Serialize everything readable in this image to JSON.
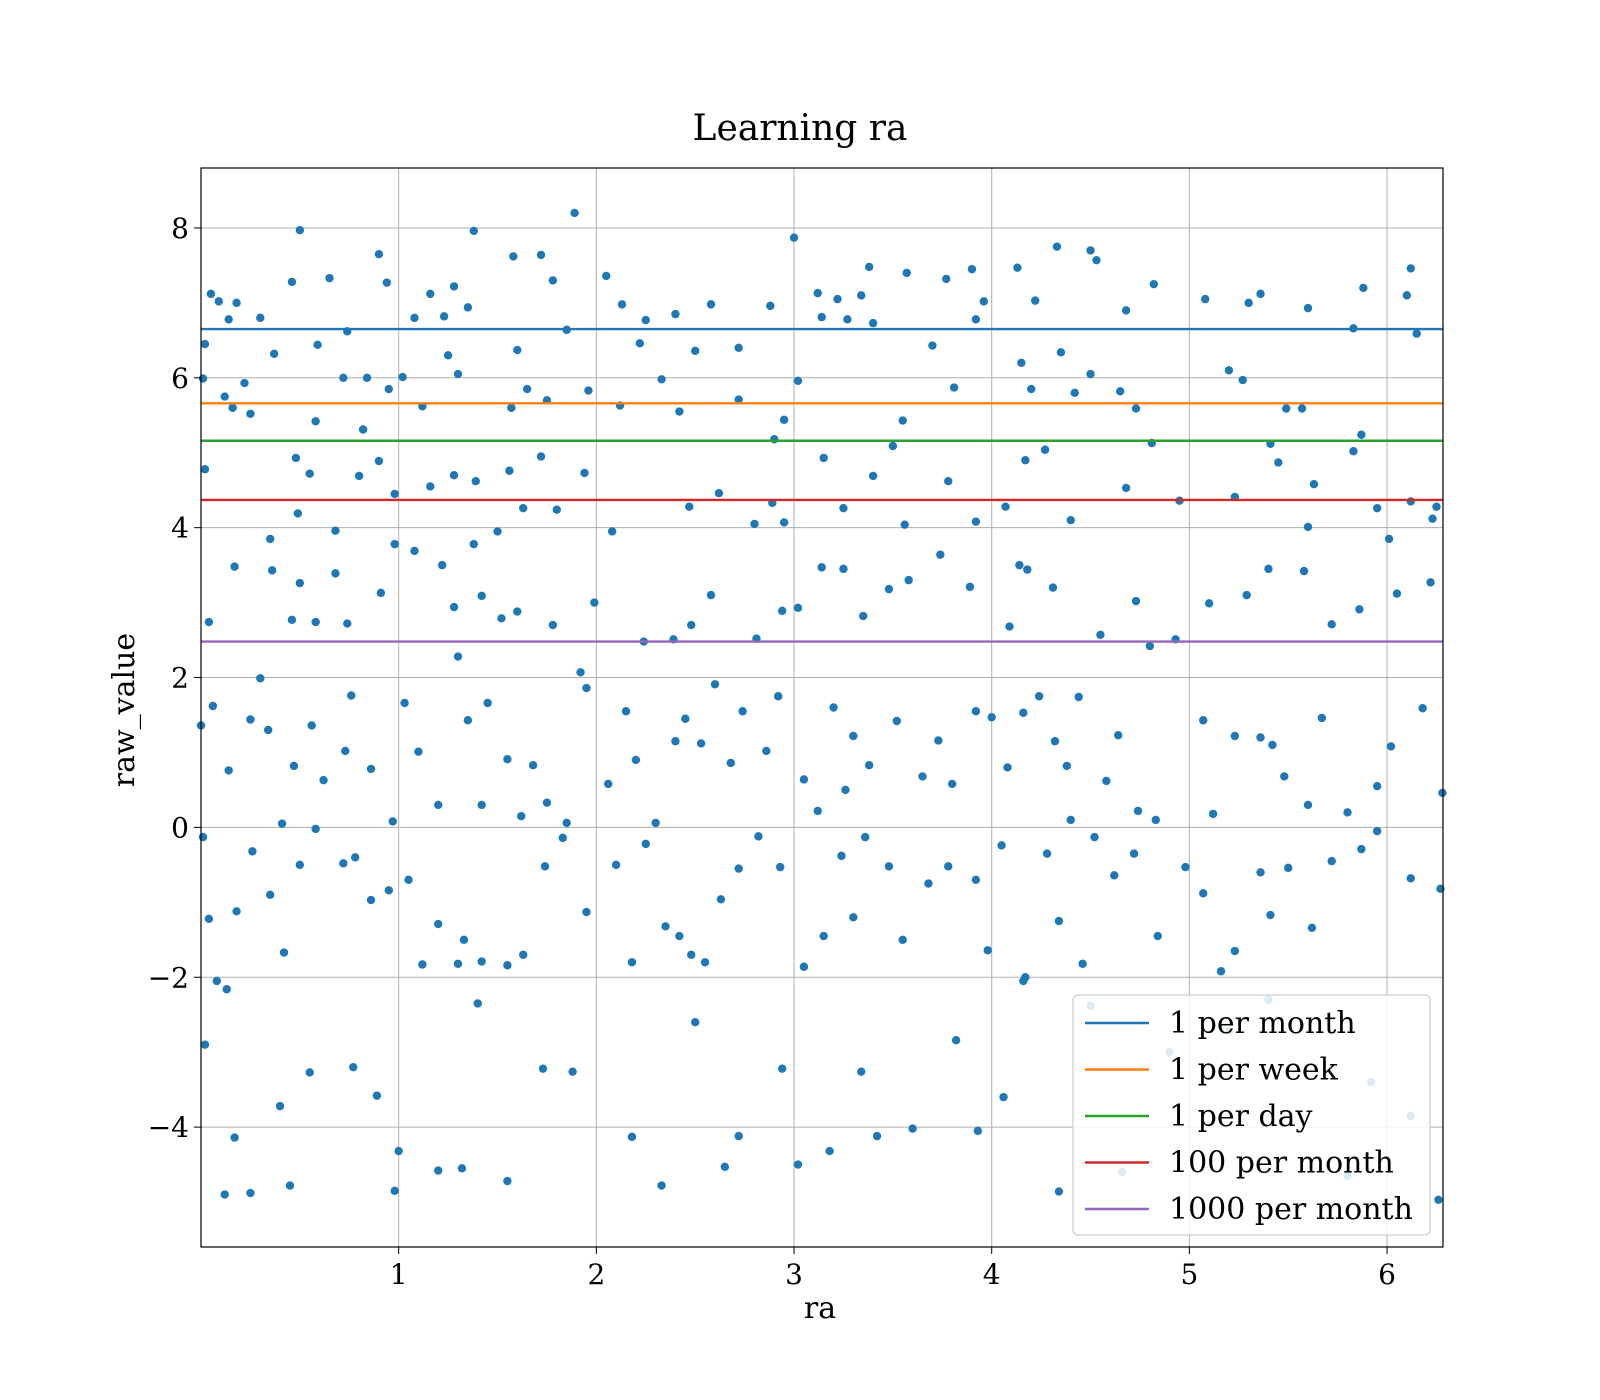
{
  "chart_data": {
    "type": "scatter",
    "title": "Learning ra",
    "xlabel": "ra",
    "ylabel": "raw_value",
    "xlim": [
      0,
      6.283
    ],
    "ylim": [
      -5.6,
      8.8
    ],
    "xticks": [
      1,
      2,
      3,
      4,
      5,
      6
    ],
    "yticks": [
      -4,
      -2,
      0,
      2,
      4,
      6,
      8
    ],
    "grid": true,
    "legend_position": "lower-right",
    "point_color": "#1f77b4",
    "points": [
      [
        0.02,
        6.45
      ],
      [
        0.05,
        7.12
      ],
      [
        0.09,
        7.02
      ],
      [
        0.14,
        6.78
      ],
      [
        0.18,
        7.0
      ],
      [
        0.22,
        5.93
      ],
      [
        0.3,
        6.8
      ],
      [
        0.37,
        6.32
      ],
      [
        0.46,
        7.28
      ],
      [
        0.5,
        7.97
      ],
      [
        0.59,
        6.44
      ],
      [
        0.65,
        7.33
      ],
      [
        0.74,
        6.62
      ],
      [
        0.84,
        6.0
      ],
      [
        0.9,
        7.65
      ],
      [
        0.94,
        7.27
      ],
      [
        1.08,
        6.8
      ],
      [
        1.16,
        7.12
      ],
      [
        1.23,
        6.82
      ],
      [
        1.28,
        7.22
      ],
      [
        1.35,
        6.94
      ],
      [
        1.38,
        7.96
      ],
      [
        1.58,
        7.62
      ],
      [
        1.72,
        7.64
      ],
      [
        1.78,
        7.3
      ],
      [
        1.89,
        8.2
      ],
      [
        2.05,
        7.36
      ],
      [
        2.13,
        6.98
      ],
      [
        2.25,
        6.77
      ],
      [
        2.4,
        6.85
      ],
      [
        2.58,
        6.98
      ],
      [
        2.72,
        6.4
      ],
      [
        2.88,
        6.96
      ],
      [
        3.0,
        7.87
      ],
      [
        3.12,
        7.13
      ],
      [
        3.22,
        7.05
      ],
      [
        3.34,
        7.1
      ],
      [
        3.38,
        7.48
      ],
      [
        3.57,
        7.4
      ],
      [
        3.77,
        7.32
      ],
      [
        3.9,
        7.45
      ],
      [
        3.96,
        7.02
      ],
      [
        4.13,
        7.47
      ],
      [
        4.22,
        7.03
      ],
      [
        4.33,
        7.75
      ],
      [
        4.5,
        7.7
      ],
      [
        4.53,
        7.57
      ],
      [
        4.68,
        6.9
      ],
      [
        4.82,
        7.25
      ],
      [
        5.08,
        7.05
      ],
      [
        5.3,
        7.0
      ],
      [
        5.36,
        7.12
      ],
      [
        5.6,
        6.93
      ],
      [
        5.88,
        7.2
      ],
      [
        6.12,
        7.46
      ],
      [
        6.1,
        7.1
      ],
      [
        0.01,
        5.99
      ],
      [
        0.12,
        5.75
      ],
      [
        0.16,
        5.6
      ],
      [
        0.25,
        5.52
      ],
      [
        0.48,
        4.93
      ],
      [
        0.58,
        5.42
      ],
      [
        0.72,
        6.0
      ],
      [
        0.82,
        5.31
      ],
      [
        0.95,
        5.85
      ],
      [
        1.02,
        6.01
      ],
      [
        1.12,
        5.62
      ],
      [
        1.25,
        6.3
      ],
      [
        1.3,
        6.05
      ],
      [
        1.57,
        5.6
      ],
      [
        1.6,
        6.37
      ],
      [
        1.65,
        5.85
      ],
      [
        1.75,
        5.7
      ],
      [
        1.85,
        6.64
      ],
      [
        1.96,
        5.83
      ],
      [
        2.12,
        5.63
      ],
      [
        2.22,
        6.46
      ],
      [
        2.33,
        5.98
      ],
      [
        2.42,
        5.55
      ],
      [
        2.5,
        6.36
      ],
      [
        2.72,
        5.71
      ],
      [
        2.9,
        5.18
      ],
      [
        2.95,
        5.44
      ],
      [
        3.02,
        5.96
      ],
      [
        3.14,
        6.81
      ],
      [
        3.27,
        6.78
      ],
      [
        3.4,
        6.73
      ],
      [
        3.55,
        5.43
      ],
      [
        3.7,
        6.43
      ],
      [
        3.81,
        5.87
      ],
      [
        3.92,
        6.78
      ],
      [
        4.15,
        6.2
      ],
      [
        4.2,
        5.85
      ],
      [
        4.35,
        6.34
      ],
      [
        4.42,
        5.8
      ],
      [
        4.5,
        6.05
      ],
      [
        4.65,
        5.82
      ],
      [
        4.73,
        5.59
      ],
      [
        4.81,
        5.13
      ],
      [
        5.2,
        6.1
      ],
      [
        5.27,
        5.97
      ],
      [
        5.49,
        5.59
      ],
      [
        5.57,
        5.59
      ],
      [
        5.83,
        6.66
      ],
      [
        6.15,
        6.59
      ],
      [
        0.02,
        4.78
      ],
      [
        0.35,
        3.85
      ],
      [
        0.49,
        4.19
      ],
      [
        0.55,
        4.72
      ],
      [
        0.68,
        3.96
      ],
      [
        0.8,
        4.69
      ],
      [
        0.9,
        4.89
      ],
      [
        0.98,
        4.45
      ],
      [
        1.16,
        4.55
      ],
      [
        1.28,
        4.7
      ],
      [
        1.39,
        4.62
      ],
      [
        1.5,
        3.95
      ],
      [
        1.56,
        4.76
      ],
      [
        1.63,
        4.26
      ],
      [
        1.72,
        4.95
      ],
      [
        1.8,
        4.24
      ],
      [
        1.94,
        4.73
      ],
      [
        2.08,
        3.95
      ],
      [
        2.47,
        4.28
      ],
      [
        2.62,
        4.46
      ],
      [
        2.8,
        4.05
      ],
      [
        2.89,
        4.33
      ],
      [
        2.95,
        4.07
      ],
      [
        3.15,
        4.93
      ],
      [
        3.25,
        4.26
      ],
      [
        3.4,
        4.69
      ],
      [
        3.5,
        5.09
      ],
      [
        3.56,
        4.04
      ],
      [
        3.78,
        4.62
      ],
      [
        3.92,
        4.08
      ],
      [
        4.07,
        4.28
      ],
      [
        4.17,
        4.9
      ],
      [
        4.27,
        5.04
      ],
      [
        4.4,
        4.1
      ],
      [
        4.68,
        4.53
      ],
      [
        4.95,
        4.36
      ],
      [
        5.23,
        4.41
      ],
      [
        5.41,
        5.12
      ],
      [
        5.45,
        4.87
      ],
      [
        5.6,
        4.01
      ],
      [
        5.63,
        4.58
      ],
      [
        5.83,
        5.02
      ],
      [
        5.87,
        5.24
      ],
      [
        5.95,
        4.26
      ],
      [
        6.01,
        3.85
      ],
      [
        6.12,
        4.35
      ],
      [
        6.23,
        4.12
      ],
      [
        6.25,
        4.28
      ],
      [
        0.04,
        2.74
      ],
      [
        0.17,
        3.48
      ],
      [
        0.36,
        3.43
      ],
      [
        0.46,
        2.77
      ],
      [
        0.5,
        3.26
      ],
      [
        0.58,
        2.74
      ],
      [
        0.68,
        3.39
      ],
      [
        0.74,
        2.72
      ],
      [
        0.91,
        3.13
      ],
      [
        0.98,
        3.78
      ],
      [
        1.08,
        3.69
      ],
      [
        1.22,
        3.5
      ],
      [
        1.28,
        2.94
      ],
      [
        1.38,
        3.78
      ],
      [
        1.42,
        3.09
      ],
      [
        1.52,
        2.79
      ],
      [
        1.6,
        2.88
      ],
      [
        1.78,
        2.7
      ],
      [
        1.92,
        2.07
      ],
      [
        1.99,
        3.0
      ],
      [
        2.24,
        2.48
      ],
      [
        2.39,
        2.51
      ],
      [
        2.48,
        2.7
      ],
      [
        2.58,
        3.1
      ],
      [
        2.81,
        2.52
      ],
      [
        2.94,
        2.89
      ],
      [
        3.02,
        2.93
      ],
      [
        3.14,
        3.47
      ],
      [
        3.25,
        3.45
      ],
      [
        3.35,
        2.82
      ],
      [
        3.48,
        3.18
      ],
      [
        3.58,
        3.3
      ],
      [
        3.74,
        3.64
      ],
      [
        3.89,
        3.21
      ],
      [
        4.09,
        2.68
      ],
      [
        4.14,
        3.5
      ],
      [
        4.18,
        3.44
      ],
      [
        4.31,
        3.2
      ],
      [
        4.55,
        2.57
      ],
      [
        4.73,
        3.02
      ],
      [
        4.8,
        2.42
      ],
      [
        4.93,
        2.51
      ],
      [
        5.1,
        2.99
      ],
      [
        5.29,
        3.1
      ],
      [
        5.4,
        3.45
      ],
      [
        5.58,
        3.42
      ],
      [
        5.72,
        2.71
      ],
      [
        5.86,
        2.91
      ],
      [
        6.05,
        3.12
      ],
      [
        6.22,
        3.27
      ],
      [
        0.0,
        1.36
      ],
      [
        0.06,
        1.62
      ],
      [
        0.14,
        0.76
      ],
      [
        0.25,
        1.44
      ],
      [
        0.3,
        1.99
      ],
      [
        0.34,
        1.3
      ],
      [
        0.41,
        0.05
      ],
      [
        0.47,
        0.82
      ],
      [
        0.56,
        1.36
      ],
      [
        0.62,
        0.63
      ],
      [
        0.73,
        1.02
      ],
      [
        0.76,
        1.76
      ],
      [
        0.86,
        0.78
      ],
      [
        0.97,
        0.08
      ],
      [
        1.03,
        1.66
      ],
      [
        1.1,
        1.01
      ],
      [
        1.2,
        0.3
      ],
      [
        1.3,
        2.28
      ],
      [
        1.35,
        1.43
      ],
      [
        1.42,
        0.3
      ],
      [
        1.45,
        1.66
      ],
      [
        1.55,
        0.91
      ],
      [
        1.62,
        0.15
      ],
      [
        1.68,
        0.83
      ],
      [
        1.75,
        0.33
      ],
      [
        1.85,
        0.06
      ],
      [
        1.95,
        1.86
      ],
      [
        2.06,
        0.58
      ],
      [
        2.15,
        1.55
      ],
      [
        2.2,
        0.9
      ],
      [
        2.3,
        0.06
      ],
      [
        2.4,
        1.15
      ],
      [
        2.45,
        1.45
      ],
      [
        2.53,
        1.12
      ],
      [
        2.6,
        1.91
      ],
      [
        2.68,
        0.86
      ],
      [
        2.74,
        1.55
      ],
      [
        2.86,
        1.02
      ],
      [
        2.92,
        1.75
      ],
      [
        3.05,
        0.64
      ],
      [
        3.12,
        0.22
      ],
      [
        3.2,
        1.6
      ],
      [
        3.26,
        0.5
      ],
      [
        3.3,
        1.22
      ],
      [
        3.38,
        0.83
      ],
      [
        3.52,
        1.42
      ],
      [
        3.65,
        0.68
      ],
      [
        3.73,
        1.16
      ],
      [
        3.8,
        0.58
      ],
      [
        3.92,
        1.55
      ],
      [
        4.0,
        1.47
      ],
      [
        4.08,
        0.8
      ],
      [
        4.16,
        1.53
      ],
      [
        4.24,
        1.75
      ],
      [
        4.32,
        1.15
      ],
      [
        4.38,
        0.82
      ],
      [
        4.4,
        0.1
      ],
      [
        4.44,
        1.74
      ],
      [
        4.58,
        0.62
      ],
      [
        4.64,
        1.23
      ],
      [
        4.74,
        0.22
      ],
      [
        4.83,
        0.1
      ],
      [
        5.07,
        1.43
      ],
      [
        5.12,
        0.18
      ],
      [
        5.23,
        1.22
      ],
      [
        5.36,
        1.2
      ],
      [
        5.42,
        1.1
      ],
      [
        5.48,
        0.68
      ],
      [
        5.6,
        0.3
      ],
      [
        5.67,
        1.46
      ],
      [
        5.8,
        0.2
      ],
      [
        5.95,
        0.55
      ],
      [
        6.02,
        1.08
      ],
      [
        6.18,
        1.59
      ],
      [
        6.28,
        0.46
      ],
      [
        0.01,
        -0.13
      ],
      [
        0.04,
        -1.22
      ],
      [
        0.08,
        -2.05
      ],
      [
        0.13,
        -2.16
      ],
      [
        0.18,
        -1.12
      ],
      [
        0.26,
        -0.32
      ],
      [
        0.35,
        -0.9
      ],
      [
        0.42,
        -1.67
      ],
      [
        0.5,
        -0.5
      ],
      [
        0.58,
        -0.02
      ],
      [
        0.72,
        -0.48
      ],
      [
        0.78,
        -0.4
      ],
      [
        0.86,
        -0.97
      ],
      [
        0.95,
        -0.84
      ],
      [
        1.05,
        -0.7
      ],
      [
        1.12,
        -1.83
      ],
      [
        1.2,
        -1.29
      ],
      [
        1.3,
        -1.82
      ],
      [
        1.33,
        -1.5
      ],
      [
        1.42,
        -1.79
      ],
      [
        1.55,
        -1.84
      ],
      [
        1.63,
        -1.7
      ],
      [
        1.74,
        -0.52
      ],
      [
        1.83,
        -0.14
      ],
      [
        1.95,
        -1.13
      ],
      [
        2.1,
        -0.5
      ],
      [
        2.18,
        -1.8
      ],
      [
        2.25,
        -0.22
      ],
      [
        2.35,
        -1.32
      ],
      [
        2.42,
        -1.45
      ],
      [
        2.48,
        -1.7
      ],
      [
        2.55,
        -1.8
      ],
      [
        2.63,
        -0.96
      ],
      [
        2.72,
        -0.55
      ],
      [
        2.82,
        -0.12
      ],
      [
        2.93,
        -0.53
      ],
      [
        3.05,
        -1.86
      ],
      [
        3.15,
        -1.45
      ],
      [
        3.24,
        -0.38
      ],
      [
        3.3,
        -1.2
      ],
      [
        3.36,
        -0.13
      ],
      [
        3.48,
        -0.52
      ],
      [
        3.55,
        -1.5
      ],
      [
        3.68,
        -0.75
      ],
      [
        3.78,
        -0.52
      ],
      [
        3.92,
        -0.7
      ],
      [
        3.98,
        -1.64
      ],
      [
        4.05,
        -0.24
      ],
      [
        4.17,
        -2.0
      ],
      [
        4.28,
        -0.35
      ],
      [
        4.34,
        -1.25
      ],
      [
        4.46,
        -1.82
      ],
      [
        4.52,
        -0.13
      ],
      [
        4.62,
        -0.64
      ],
      [
        4.72,
        -0.35
      ],
      [
        4.84,
        -1.45
      ],
      [
        4.98,
        -0.53
      ],
      [
        5.07,
        -0.88
      ],
      [
        5.16,
        -1.92
      ],
      [
        5.23,
        -1.65
      ],
      [
        5.36,
        -0.6
      ],
      [
        5.41,
        -1.17
      ],
      [
        5.5,
        -0.54
      ],
      [
        5.62,
        -1.34
      ],
      [
        5.72,
        -0.45
      ],
      [
        5.87,
        -0.29
      ],
      [
        5.95,
        -0.05
      ],
      [
        6.12,
        -0.68
      ],
      [
        6.27,
        -0.82
      ],
      [
        0.02,
        -2.9
      ],
      [
        0.12,
        -4.9
      ],
      [
        0.17,
        -4.14
      ],
      [
        0.25,
        -4.88
      ],
      [
        0.4,
        -3.72
      ],
      [
        0.45,
        -4.78
      ],
      [
        0.55,
        -3.27
      ],
      [
        0.77,
        -3.2
      ],
      [
        0.89,
        -3.58
      ],
      [
        0.98,
        -4.85
      ],
      [
        1.0,
        -4.32
      ],
      [
        1.2,
        -4.58
      ],
      [
        1.32,
        -4.55
      ],
      [
        1.4,
        -2.35
      ],
      [
        1.55,
        -4.72
      ],
      [
        1.73,
        -3.22
      ],
      [
        1.88,
        -3.26
      ],
      [
        2.18,
        -4.13
      ],
      [
        2.33,
        -4.78
      ],
      [
        2.5,
        -2.6
      ],
      [
        2.65,
        -4.53
      ],
      [
        2.72,
        -4.12
      ],
      [
        2.94,
        -3.22
      ],
      [
        3.02,
        -4.5
      ],
      [
        3.18,
        -4.32
      ],
      [
        3.34,
        -3.26
      ],
      [
        3.42,
        -4.12
      ],
      [
        3.6,
        -4.02
      ],
      [
        3.82,
        -2.84
      ],
      [
        3.93,
        -4.05
      ],
      [
        4.06,
        -3.6
      ],
      [
        4.16,
        -2.05
      ],
      [
        4.34,
        -4.86
      ],
      [
        4.5,
        -2.38
      ],
      [
        4.66,
        -4.6
      ],
      [
        4.9,
        -3.0
      ],
      [
        5.2,
        -2.72
      ],
      [
        5.4,
        -2.3
      ],
      [
        5.8,
        -4.65
      ],
      [
        5.92,
        -3.4
      ],
      [
        6.12,
        -3.85
      ],
      [
        6.26,
        -4.97
      ]
    ],
    "hlines": [
      {
        "name": "1 per month",
        "y": 6.65,
        "color": "#1f77b4"
      },
      {
        "name": "1 per week",
        "y": 5.66,
        "color": "#ff7f0e"
      },
      {
        "name": "1 per day",
        "y": 5.16,
        "color": "#2ca02c"
      },
      {
        "name": "100 per month",
        "y": 4.37,
        "color": "#d62728"
      },
      {
        "name": "1000 per month",
        "y": 2.48,
        "color": "#9467bd"
      }
    ]
  }
}
